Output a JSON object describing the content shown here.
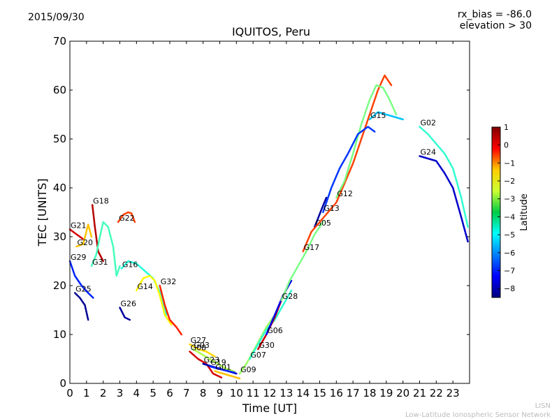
{
  "header": {
    "date": "2015/09/30",
    "title": "IQUITOS, Peru",
    "rx_bias": "rx_bias = -86.0",
    "elevation": "elevation > 30"
  },
  "footer": {
    "line1": "LISN",
    "line2": "Low-Latitude Ionospheric Sensor Network"
  },
  "chart_data": {
    "type": "scatter",
    "xlabel": "Time [UT]",
    "ylabel": "TEC [UNITS]",
    "xlim": [
      0,
      24
    ],
    "ylim": [
      0,
      70
    ],
    "xticks": [
      "0",
      "1",
      "2",
      "3",
      "4",
      "5",
      "6",
      "7",
      "8",
      "9",
      "10",
      "11",
      "12",
      "13",
      "14",
      "15",
      "16",
      "17",
      "18",
      "19",
      "20",
      "21",
      "22",
      "23"
    ],
    "yticks": [
      "0",
      "10",
      "20",
      "30",
      "40",
      "50",
      "60",
      "70"
    ],
    "colorbar": {
      "label": "Latitude",
      "min": -8.5,
      "max": 1,
      "ticks": [
        "1",
        "0",
        "−1",
        "−2",
        "−3",
        "−4",
        "−5",
        "−6",
        "−7",
        "−8"
      ],
      "tick_values": [
        1,
        0,
        -1,
        -2,
        -3,
        -4,
        -5,
        -6,
        -7,
        -8
      ]
    },
    "series": [
      {
        "name": "G21",
        "lat": 0.2,
        "points": [
          [
            0.0,
            31.5
          ],
          [
            0.4,
            30.5
          ],
          [
            0.8,
            29.5
          ]
        ]
      },
      {
        "name": "G20",
        "lat": -2.0,
        "points": [
          [
            0.4,
            28.0
          ],
          [
            0.8,
            28.5
          ],
          [
            1.1,
            32.5
          ],
          [
            1.3,
            30.0
          ]
        ]
      },
      {
        "name": "G29",
        "lat": -7.0,
        "points": [
          [
            0.0,
            25.0
          ],
          [
            0.3,
            22.0
          ],
          [
            0.7,
            20.0
          ],
          [
            1.1,
            18.5
          ],
          [
            1.4,
            17.5
          ]
        ]
      },
      {
        "name": "G25",
        "lat": -8.3,
        "points": [
          [
            0.3,
            18.5
          ],
          [
            0.6,
            17.5
          ],
          [
            0.9,
            16.0
          ],
          [
            1.1,
            13.0
          ]
        ]
      },
      {
        "name": "G18",
        "lat": 0.5,
        "points": [
          [
            1.35,
            36.5
          ],
          [
            1.5,
            32.0
          ],
          [
            1.7,
            27.0
          ],
          [
            2.0,
            25.0
          ]
        ]
      },
      {
        "name": "G31",
        "lat": -4.3,
        "points": [
          [
            1.3,
            24.0
          ],
          [
            1.6,
            26.5
          ],
          [
            1.8,
            30.0
          ],
          [
            2.0,
            33.0
          ],
          [
            2.3,
            32.0
          ],
          [
            2.6,
            28.0
          ],
          [
            2.8,
            22.0
          ],
          [
            3.0,
            24.0
          ]
        ]
      },
      {
        "name": "G22",
        "lat": -0.8,
        "points": [
          [
            2.9,
            33.0
          ],
          [
            3.2,
            34.5
          ],
          [
            3.5,
            35.0
          ],
          [
            3.7,
            34.8
          ],
          [
            3.9,
            33.0
          ]
        ]
      },
      {
        "name": "G26",
        "lat": -8.2,
        "points": [
          [
            3.0,
            15.5
          ],
          [
            3.3,
            13.5
          ],
          [
            3.6,
            13.0
          ]
        ]
      },
      {
        "name": "G16",
        "lat": -4.6,
        "points": [
          [
            3.1,
            23.5
          ],
          [
            3.5,
            25.0
          ],
          [
            4.0,
            24.5
          ],
          [
            4.5,
            23.0
          ],
          [
            5.0,
            21.5
          ],
          [
            5.5,
            18.0
          ],
          [
            5.8,
            14.0
          ]
        ]
      },
      {
        "name": "G14",
        "lat": -2.5,
        "points": [
          [
            4.0,
            19.0
          ],
          [
            4.4,
            21.5
          ],
          [
            4.8,
            22.0
          ],
          [
            5.1,
            21.0
          ],
          [
            5.4,
            18.0
          ],
          [
            5.7,
            14.0
          ],
          [
            6.1,
            12.0
          ]
        ]
      },
      {
        "name": "G32",
        "lat": -0.5,
        "points": [
          [
            5.4,
            20.0
          ],
          [
            5.7,
            16.0
          ],
          [
            6.0,
            13.0
          ],
          [
            6.4,
            11.5
          ],
          [
            6.7,
            10.0
          ]
        ]
      },
      {
        "name": "G27",
        "lat": -2.2,
        "points": [
          [
            7.2,
            8.0
          ],
          [
            7.7,
            7.0
          ],
          [
            8.2,
            6.5
          ],
          [
            8.7,
            5.5
          ]
        ]
      },
      {
        "name": "G03",
        "lat": -3.3,
        "points": [
          [
            7.4,
            7.0
          ],
          [
            7.9,
            6.0
          ],
          [
            8.4,
            5.0
          ],
          [
            8.9,
            4.0
          ],
          [
            9.4,
            3.0
          ],
          [
            9.9,
            2.4
          ]
        ]
      },
      {
        "name": "G08",
        "lat": 0.2,
        "points": [
          [
            7.2,
            6.5
          ],
          [
            7.7,
            5.0
          ],
          [
            8.2,
            4.0
          ],
          [
            8.6,
            2.0
          ],
          [
            9.1,
            1.2
          ]
        ]
      },
      {
        "name": "G23",
        "lat": -8.0,
        "points": [
          [
            8.0,
            4.0
          ],
          [
            8.5,
            3.5
          ],
          [
            9.0,
            3.0
          ],
          [
            9.5,
            2.5
          ],
          [
            10.0,
            2.0
          ]
        ]
      },
      {
        "name": "G19",
        "lat": -7.0,
        "points": [
          [
            8.4,
            3.5
          ],
          [
            8.9,
            3.0
          ],
          [
            9.4,
            2.6
          ],
          [
            9.9,
            2.2
          ]
        ]
      },
      {
        "name": "G01",
        "lat": -2.0,
        "points": [
          [
            8.7,
            2.5
          ],
          [
            9.2,
            2.0
          ],
          [
            9.7,
            1.5
          ],
          [
            10.2,
            1.0
          ]
        ]
      },
      {
        "name": "G09",
        "lat": -3.5,
        "points": [
          [
            10.2,
            2.0
          ],
          [
            10.6,
            4.0
          ],
          [
            11.0,
            6.5
          ],
          [
            11.4,
            9.0
          ],
          [
            11.8,
            11.5
          ],
          [
            12.2,
            13.5
          ]
        ]
      },
      {
        "name": "G07",
        "lat": -4.5,
        "points": [
          [
            10.8,
            5.0
          ],
          [
            11.3,
            8.0
          ],
          [
            11.8,
            11.0
          ],
          [
            12.3,
            13.0
          ],
          [
            12.8,
            16.0
          ],
          [
            13.3,
            19.0
          ]
        ]
      },
      {
        "name": "G30",
        "lat": 0.3,
        "points": [
          [
            11.3,
            7.0
          ],
          [
            11.8,
            10.0
          ],
          [
            12.3,
            13.5
          ],
          [
            12.7,
            17.0
          ],
          [
            13.1,
            20.0
          ]
        ]
      },
      {
        "name": "G06",
        "lat": -7.5,
        "points": [
          [
            11.8,
            10.0
          ],
          [
            12.3,
            14.0
          ],
          [
            12.8,
            18.0
          ],
          [
            13.3,
            21.0
          ]
        ]
      },
      {
        "name": "G28",
        "lat": -3.8,
        "points": [
          [
            12.7,
            17.0
          ],
          [
            13.2,
            21.0
          ],
          [
            13.7,
            24.0
          ],
          [
            14.2,
            27.0
          ],
          [
            14.7,
            30.5
          ],
          [
            15.2,
            33.0
          ]
        ]
      },
      {
        "name": "G05",
        "lat": -8.2,
        "points": [
          [
            14.7,
            32.0
          ],
          [
            15.1,
            35.5
          ],
          [
            15.4,
            38.0
          ]
        ]
      },
      {
        "name": "G17",
        "lat": -0.8,
        "points": [
          [
            14.0,
            27.0
          ],
          [
            14.5,
            31.0
          ],
          [
            15.0,
            33.0
          ],
          [
            15.5,
            35.0
          ],
          [
            16.0,
            37.0
          ],
          [
            16.5,
            41.0
          ],
          [
            17.0,
            45.0
          ],
          [
            17.5,
            50.0
          ],
          [
            18.0,
            55.0
          ],
          [
            18.5,
            60.0
          ],
          [
            18.9,
            63.0
          ],
          [
            19.3,
            61.0
          ]
        ]
      },
      {
        "name": "G12",
        "lat": -3.8,
        "points": [
          [
            16.0,
            38.0
          ],
          [
            16.5,
            41.5
          ],
          [
            17.0,
            47.0
          ],
          [
            17.5,
            53.0
          ],
          [
            18.0,
            58.0
          ],
          [
            18.4,
            61.0
          ],
          [
            18.8,
            60.5
          ],
          [
            19.2,
            58.0
          ],
          [
            19.6,
            55.0
          ]
        ]
      },
      {
        "name": "G13",
        "lat": -6.8,
        "points": [
          [
            15.2,
            35.0
          ],
          [
            15.7,
            40.0
          ],
          [
            16.2,
            44.0
          ],
          [
            16.7,
            47.0
          ],
          [
            17.3,
            51.0
          ],
          [
            17.9,
            52.5
          ],
          [
            18.3,
            51.5
          ]
        ]
      },
      {
        "name": "G15",
        "lat": -5.5,
        "points": [
          [
            18.0,
            54.0
          ],
          [
            18.5,
            55.5
          ],
          [
            19.0,
            55.0
          ],
          [
            19.5,
            54.5
          ],
          [
            20.0,
            54.0
          ]
        ]
      },
      {
        "name": "G02",
        "lat": -4.5,
        "points": [
          [
            21.0,
            52.5
          ],
          [
            21.5,
            51.0
          ],
          [
            22.0,
            49.0
          ],
          [
            22.5,
            47.0
          ],
          [
            23.0,
            44.0
          ],
          [
            23.5,
            38.0
          ],
          [
            23.9,
            32.0
          ]
        ]
      },
      {
        "name": "G24",
        "lat": -7.8,
        "points": [
          [
            21.0,
            46.5
          ],
          [
            21.5,
            46.0
          ],
          [
            22.0,
            45.5
          ],
          [
            22.5,
            43.0
          ],
          [
            23.0,
            40.0
          ],
          [
            23.5,
            34.0
          ],
          [
            23.9,
            29.0
          ]
        ]
      }
    ]
  }
}
